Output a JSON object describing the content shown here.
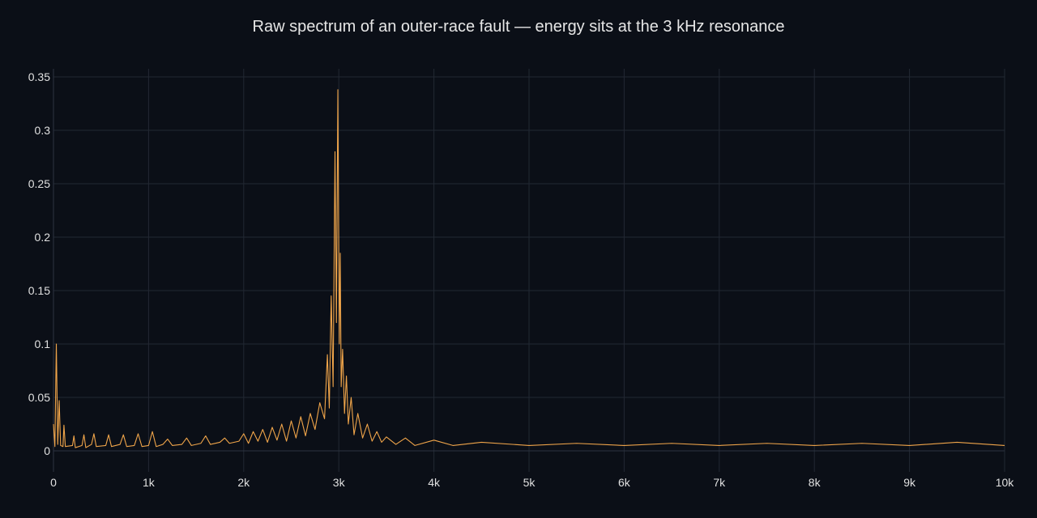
{
  "chart_data": {
    "type": "line",
    "title": "Raw spectrum of an outer-race fault — energy sits at the 3 kHz resonance",
    "xlabel": "",
    "ylabel": "",
    "xlim": [
      0,
      10000
    ],
    "ylim": [
      0,
      0.35
    ],
    "grid": true,
    "x_ticks": [
      {
        "value": 0,
        "label": "0"
      },
      {
        "value": 1000,
        "label": "1k"
      },
      {
        "value": 2000,
        "label": "2k"
      },
      {
        "value": 3000,
        "label": "3k"
      },
      {
        "value": 4000,
        "label": "4k"
      },
      {
        "value": 5000,
        "label": "5k"
      },
      {
        "value": 6000,
        "label": "6k"
      },
      {
        "value": 7000,
        "label": "7k"
      },
      {
        "value": 8000,
        "label": "8k"
      },
      {
        "value": 9000,
        "label": "9k"
      },
      {
        "value": 10000,
        "label": "10k"
      }
    ],
    "y_ticks": [
      {
        "value": 0,
        "label": "0"
      },
      {
        "value": 0.05,
        "label": "0.05"
      },
      {
        "value": 0.1,
        "label": "0.1"
      },
      {
        "value": 0.15,
        "label": "0.15"
      },
      {
        "value": 0.2,
        "label": "0.2"
      },
      {
        "value": 0.25,
        "label": "0.25"
      },
      {
        "value": 0.3,
        "label": "0.3"
      },
      {
        "value": 0.35,
        "label": "0.35"
      }
    ],
    "series": [
      {
        "color": "#f0a54a",
        "points": [
          [
            0,
            0.025
          ],
          [
            15,
            0.004
          ],
          [
            30,
            0.1
          ],
          [
            45,
            0.006
          ],
          [
            60,
            0.047
          ],
          [
            75,
            0.005
          ],
          [
            100,
            0.004
          ],
          [
            110,
            0.024
          ],
          [
            125,
            0.004
          ],
          [
            200,
            0.005
          ],
          [
            215,
            0.014
          ],
          [
            230,
            0.003
          ],
          [
            300,
            0.005
          ],
          [
            320,
            0.015
          ],
          [
            340,
            0.003
          ],
          [
            400,
            0.006
          ],
          [
            425,
            0.016
          ],
          [
            450,
            0.004
          ],
          [
            550,
            0.005
          ],
          [
            580,
            0.015
          ],
          [
            610,
            0.004
          ],
          [
            700,
            0.006
          ],
          [
            735,
            0.015
          ],
          [
            770,
            0.004
          ],
          [
            850,
            0.005
          ],
          [
            890,
            0.016
          ],
          [
            930,
            0.004
          ],
          [
            1000,
            0.005
          ],
          [
            1040,
            0.018
          ],
          [
            1080,
            0.004
          ],
          [
            1150,
            0.006
          ],
          [
            1200,
            0.011
          ],
          [
            1250,
            0.005
          ],
          [
            1350,
            0.006
          ],
          [
            1400,
            0.012
          ],
          [
            1450,
            0.005
          ],
          [
            1550,
            0.007
          ],
          [
            1600,
            0.014
          ],
          [
            1650,
            0.006
          ],
          [
            1750,
            0.008
          ],
          [
            1800,
            0.012
          ],
          [
            1850,
            0.007
          ],
          [
            1950,
            0.009
          ],
          [
            2000,
            0.016
          ],
          [
            2050,
            0.007
          ],
          [
            2100,
            0.018
          ],
          [
            2150,
            0.009
          ],
          [
            2200,
            0.02
          ],
          [
            2250,
            0.008
          ],
          [
            2300,
            0.022
          ],
          [
            2350,
            0.01
          ],
          [
            2400,
            0.025
          ],
          [
            2450,
            0.009
          ],
          [
            2500,
            0.028
          ],
          [
            2550,
            0.012
          ],
          [
            2600,
            0.032
          ],
          [
            2650,
            0.014
          ],
          [
            2700,
            0.035
          ],
          [
            2750,
            0.02
          ],
          [
            2800,
            0.045
          ],
          [
            2850,
            0.03
          ],
          [
            2880,
            0.09
          ],
          [
            2900,
            0.04
          ],
          [
            2920,
            0.145
          ],
          [
            2940,
            0.06
          ],
          [
            2960,
            0.28
          ],
          [
            2975,
            0.12
          ],
          [
            2990,
            0.338
          ],
          [
            3005,
            0.1
          ],
          [
            3015,
            0.185
          ],
          [
            3025,
            0.06
          ],
          [
            3040,
            0.095
          ],
          [
            3060,
            0.035
          ],
          [
            3080,
            0.07
          ],
          [
            3100,
            0.025
          ],
          [
            3130,
            0.05
          ],
          [
            3160,
            0.015
          ],
          [
            3200,
            0.035
          ],
          [
            3250,
            0.012
          ],
          [
            3300,
            0.025
          ],
          [
            3350,
            0.009
          ],
          [
            3400,
            0.018
          ],
          [
            3450,
            0.008
          ],
          [
            3500,
            0.013
          ],
          [
            3600,
            0.006
          ],
          [
            3700,
            0.012
          ],
          [
            3800,
            0.005
          ],
          [
            4000,
            0.01
          ],
          [
            4200,
            0.005
          ],
          [
            4500,
            0.008
          ],
          [
            5000,
            0.005
          ],
          [
            5500,
            0.007
          ],
          [
            6000,
            0.005
          ],
          [
            6500,
            0.007
          ],
          [
            7000,
            0.005
          ],
          [
            7500,
            0.007
          ],
          [
            8000,
            0.005
          ],
          [
            8500,
            0.007
          ],
          [
            9000,
            0.005
          ],
          [
            9500,
            0.008
          ],
          [
            10000,
            0.005
          ]
        ]
      }
    ]
  }
}
